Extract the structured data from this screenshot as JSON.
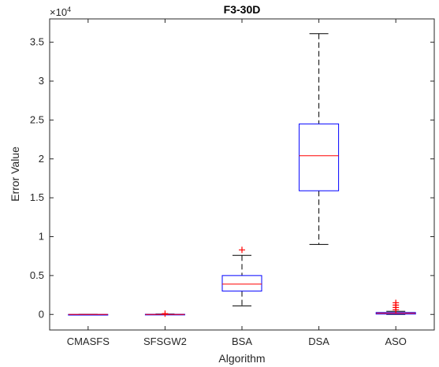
{
  "chart_data": {
    "type": "boxplot",
    "title": "F3-30D",
    "xlabel": "Algorithm",
    "ylabel": "Error Value",
    "y_exponent_label": "×10",
    "y_exponent_power": "4",
    "ylim": [
      -2000,
      38000
    ],
    "yticks": [
      0,
      5000,
      10000,
      15000,
      20000,
      25000,
      30000,
      35000
    ],
    "ytick_labels": [
      "0",
      "0.5",
      "1",
      "1.5",
      "2",
      "2.5",
      "3",
      "3.5"
    ],
    "categories": [
      "CMASFS",
      "SFSGW2",
      "BSA",
      "DSA",
      "ASO"
    ],
    "boxes": [
      {
        "whisker_low": 0,
        "q1": 0,
        "median": 0,
        "q3": 0,
        "whisker_high": 0,
        "outliers": []
      },
      {
        "whisker_low": 0,
        "q1": 0,
        "median": 0,
        "q3": 20,
        "whisker_high": 50,
        "outliers": [
          100
        ]
      },
      {
        "whisker_low": 1100,
        "q1": 3000,
        "median": 3900,
        "q3": 5000,
        "whisker_high": 7600,
        "outliers": [
          8300
        ]
      },
      {
        "whisker_low": 9000,
        "q1": 15900,
        "median": 20400,
        "q3": 24500,
        "whisker_high": 36100,
        "outliers": []
      },
      {
        "whisker_low": 0,
        "q1": 50,
        "median": 150,
        "q3": 250,
        "whisker_high": 400,
        "outliers": [
          600,
          900,
          1200,
          1500
        ]
      }
    ],
    "colors": {
      "box": "#0000ff",
      "median": "#ff0000",
      "whisker": "#000000",
      "outlier": "#ff0000",
      "axis": "#262626"
    }
  }
}
